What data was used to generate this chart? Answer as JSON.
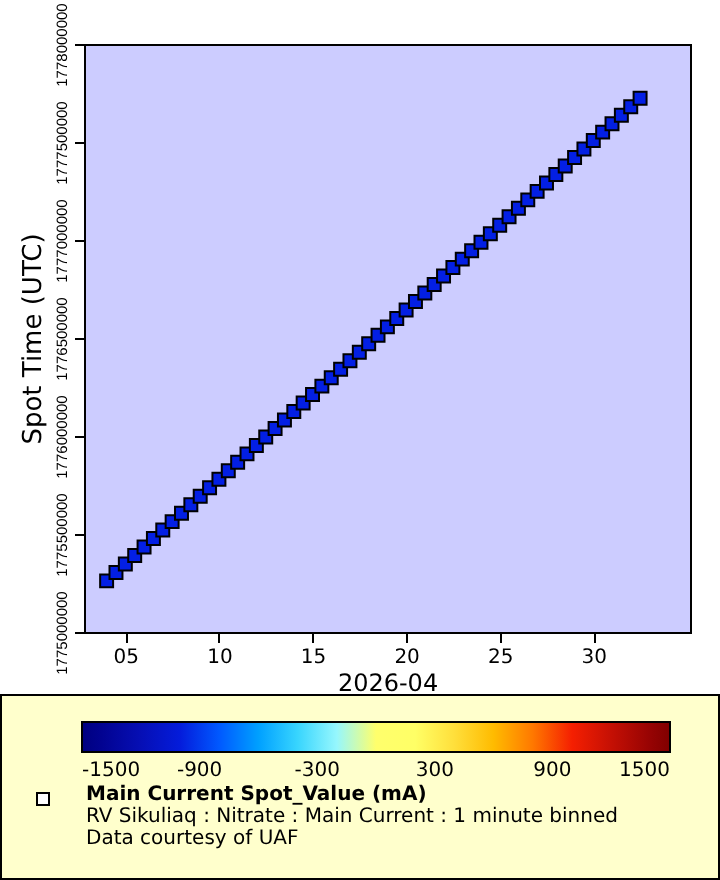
{
  "chart_data": {
    "type": "scatter",
    "xlabel": "2026-04",
    "ylabel": "Spot Time (UTC)",
    "clabel": "Main Current Spot_Value (mA)",
    "annotations": [
      "RV Sikuliaq : Nitrate : Main Current : 1 minute binned",
      "Data courtesy of UAF"
    ],
    "marker": "square",
    "xlim": [
      "2026-04-02T19:00",
      "2026-05-05T04:00"
    ],
    "xticks": [
      {
        "value": "2026-04-05",
        "label": "05"
      },
      {
        "value": "2026-04-10",
        "label": "10"
      },
      {
        "value": "2026-04-15",
        "label": "15"
      },
      {
        "value": "2026-04-20",
        "label": "20"
      },
      {
        "value": "2026-04-25",
        "label": "25"
      },
      {
        "value": "2026-04-30",
        "label": "30"
      }
    ],
    "ylim": [
      1775000000,
      1778000000
    ],
    "yticks": [
      1775000000,
      1775500000,
      1776000000,
      1776500000,
      1777000000,
      1777500000,
      1778000000
    ],
    "clim": [
      -1500,
      1500
    ],
    "cticks": [
      -1500,
      -900,
      -300,
      300,
      900,
      1500
    ],
    "x": [
      "2026-04-04T00:00",
      "2026-04-04T12:00",
      "2026-04-05T00:00",
      "2026-04-05T12:00",
      "2026-04-06T00:00",
      "2026-04-06T12:00",
      "2026-04-07T00:00",
      "2026-04-07T12:00",
      "2026-04-08T00:00",
      "2026-04-08T12:00",
      "2026-04-09T00:00",
      "2026-04-09T12:00",
      "2026-04-10T00:00",
      "2026-04-10T12:00",
      "2026-04-11T00:00",
      "2026-04-11T12:00",
      "2026-04-12T00:00",
      "2026-04-12T12:00",
      "2026-04-13T00:00",
      "2026-04-13T12:00",
      "2026-04-14T00:00",
      "2026-04-14T12:00",
      "2026-04-15T00:00",
      "2026-04-15T12:00",
      "2026-04-16T00:00",
      "2026-04-16T12:00",
      "2026-04-17T00:00",
      "2026-04-17T12:00",
      "2026-04-18T00:00",
      "2026-04-18T12:00",
      "2026-04-19T00:00",
      "2026-04-19T12:00",
      "2026-04-20T00:00",
      "2026-04-20T12:00",
      "2026-04-21T00:00",
      "2026-04-21T12:00",
      "2026-04-22T00:00",
      "2026-04-22T12:00",
      "2026-04-23T00:00",
      "2026-04-23T12:00",
      "2026-04-24T00:00",
      "2026-04-24T12:00",
      "2026-04-25T00:00",
      "2026-04-25T12:00",
      "2026-04-26T00:00",
      "2026-04-26T12:00",
      "2026-04-27T00:00",
      "2026-04-27T12:00",
      "2026-04-28T00:00",
      "2026-04-28T12:00",
      "2026-04-29T00:00",
      "2026-04-29T12:00",
      "2026-04-30T00:00",
      "2026-04-30T12:00",
      "2026-05-01T00:00",
      "2026-05-01T12:00",
      "2026-05-02T00:00",
      "2026-05-02T12:00"
    ],
    "values": [
      1775260800,
      1775304000,
      1775347200,
      1775390400,
      1775433600,
      1775476800,
      1775520000,
      1775563200,
      1775606400,
      1775649600,
      1775692800,
      1775736000,
      1775779200,
      1775822400,
      1775865600,
      1775908800,
      1775952000,
      1775995200,
      1776038400,
      1776081600,
      1776124800,
      1776168000,
      1776211200,
      1776254400,
      1776297600,
      1776340800,
      1776384000,
      1776427200,
      1776470400,
      1776513600,
      1776556800,
      1776600000,
      1776643200,
      1776686400,
      1776729600,
      1776772800,
      1776816000,
      1776859200,
      1776902400,
      1776945600,
      1776988800,
      1777032000,
      1777075200,
      1777118400,
      1777161600,
      1777204800,
      1777248000,
      1777291200,
      1777334400,
      1777377600,
      1777420800,
      1777464000,
      1777507200,
      1777550400,
      1777593600,
      1777636800,
      1777680000,
      1777723200
    ],
    "cvalues": [
      -950,
      -950,
      -950,
      -950,
      -950,
      -950,
      -950,
      -950,
      -950,
      -950,
      -950,
      -950,
      -950,
      -950,
      -950,
      -950,
      -950,
      -950,
      -950,
      -950,
      -950,
      -950,
      -950,
      -950,
      -950,
      -950,
      -950,
      -950,
      -950,
      -950,
      -950,
      -950,
      -950,
      -950,
      -950,
      -950,
      -950,
      -950,
      -950,
      -950,
      -950,
      -950,
      -950,
      -950,
      -950,
      -950,
      -950,
      -950,
      -950,
      -950,
      -950,
      -950,
      -950,
      -950,
      -950,
      -950,
      -950,
      -950
    ]
  }
}
